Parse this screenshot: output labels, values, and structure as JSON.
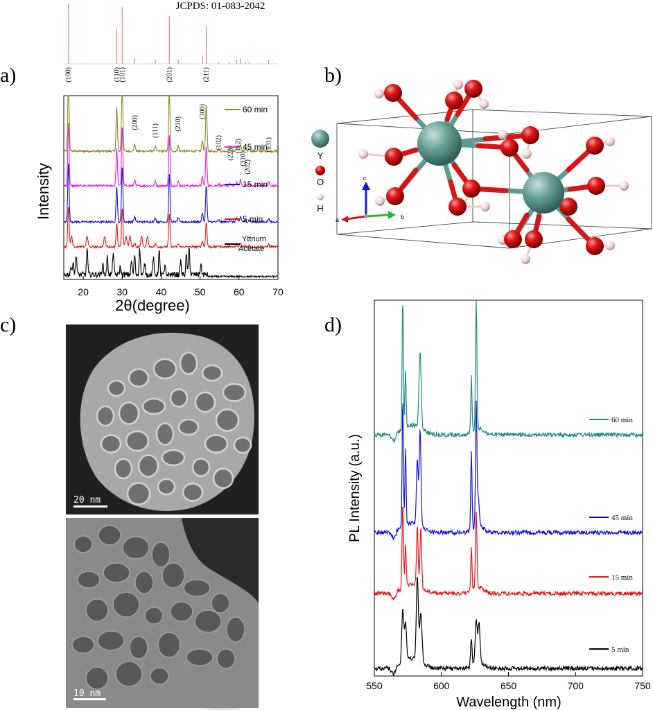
{
  "panel_labels": {
    "a": "a)",
    "b": "b)",
    "c": "c)",
    "d": "d)"
  },
  "chart_data": [
    {
      "type": "line",
      "panel": "a",
      "reference": {
        "label": "JCPDS: 01-083-2042",
        "color": "#e88080",
        "peaks": [
          {
            "x": 16.2,
            "h": 0.98
          },
          {
            "x": 28.6,
            "h": 0.58
          },
          {
            "x": 30.0,
            "h": 0.93
          },
          {
            "x": 33.2,
            "h": 0.09
          },
          {
            "x": 38.5,
            "h": 0.07
          },
          {
            "x": 42.1,
            "h": 0.78
          },
          {
            "x": 44.4,
            "h": 0.07
          },
          {
            "x": 50.6,
            "h": 0.14
          },
          {
            "x": 51.6,
            "h": 0.61
          },
          {
            "x": 54.8,
            "h": 0.03
          },
          {
            "x": 57.6,
            "h": 0.03
          },
          {
            "x": 59.4,
            "h": 0.06
          },
          {
            "x": 60.4,
            "h": 0.09
          },
          {
            "x": 61.6,
            "h": 0.03
          },
          {
            "x": 62.6,
            "h": 0.03
          },
          {
            "x": 67.6,
            "h": 0.06
          }
        ]
      },
      "xlabel": "2θ(degree)",
      "ylabel": "Intensity",
      "xlim": [
        15,
        70
      ],
      "xticks": [
        20,
        30,
        40,
        50,
        60,
        70
      ],
      "peak_labels": [
        {
          "x": 16.2,
          "label": "(100)"
        },
        {
          "x": 28.6,
          "label": "(110)"
        },
        {
          "x": 30.0,
          "label": "(101)"
        },
        {
          "x": 42.1,
          "label": "(201)"
        },
        {
          "x": 51.6,
          "label": "(211)"
        },
        {
          "x": 33.2,
          "label": "(200)"
        },
        {
          "x": 38.5,
          "label": "(111)"
        },
        {
          "x": 44.4,
          "label": "(210)"
        },
        {
          "x": 50.6,
          "label": "(300)"
        },
        {
          "x": 54.8,
          "label": "(102)"
        },
        {
          "x": 57.8,
          "label": "(220)"
        },
        {
          "x": 59.8,
          "label": "(112)"
        },
        {
          "x": 61.0,
          "label": "(310)"
        },
        {
          "x": 62.2,
          "label": "(202)"
        },
        {
          "x": 67.6,
          "label": "(131)"
        }
      ],
      "series": [
        {
          "name": "60 min",
          "color": "#8a8a1e"
        },
        {
          "name": "45 min",
          "color": "#e020e0"
        },
        {
          "name": "15 min",
          "color": "#1414d4"
        },
        {
          "name": "5 min",
          "color": "#e01818"
        },
        {
          "name": "Yttrium Acetate",
          "color": "#000000"
        }
      ]
    },
    {
      "type": "line",
      "panel": "d",
      "xlabel": "Wavelength (nm)",
      "ylabel": "PL Intensity (a.u.)",
      "xlim": [
        550,
        750
      ],
      "xticks": [
        550,
        600,
        650,
        700,
        750
      ],
      "series": [
        {
          "name": "60 min",
          "color": "#1e8c82"
        },
        {
          "name": "45 min",
          "color": "#1414d4"
        },
        {
          "name": "15 min",
          "color": "#e01818"
        },
        {
          "name": "5 min",
          "color": "#000000"
        }
      ]
    }
  ],
  "structure": {
    "legend": [
      {
        "label": "Y",
        "color": "#5f9a94"
      },
      {
        "label": "O",
        "color": "#d91414"
      },
      {
        "label": "H",
        "color": "#f2d4d4"
      }
    ],
    "axes": {
      "a": "a",
      "b": "b",
      "c": "c"
    }
  },
  "micrographs": {
    "top_scale": "20 nm",
    "bottom_scale": "10 nm"
  }
}
